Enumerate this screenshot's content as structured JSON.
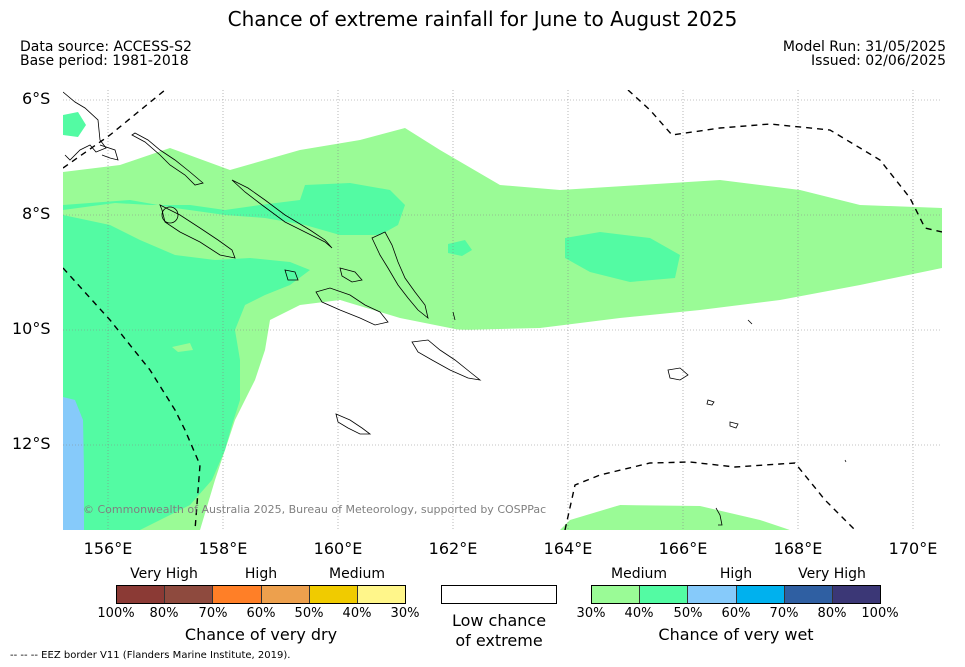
{
  "title": "Chance of extreme rainfall for June to August 2025",
  "data_source": "Data source: ACCESS-S2",
  "base_period": "Base period: 1981-2018",
  "model_run": "Model Run: 31/05/2025",
  "issued": "Issued: 02/06/2025",
  "copyright": "© Commonwealth of Australia 2025, Bureau of Meteorology, supported by COSPPac",
  "footer": "--  --  -- EEZ border V11 (Flanders Marine Institute, 2019).",
  "map": {
    "lat_labels": [
      "6°S",
      "8°S",
      "10°S",
      "12°S"
    ],
    "lon_labels": [
      "156°E",
      "158°E",
      "160°E",
      "162°E",
      "164°E",
      "166°E",
      "168°E",
      "170°E"
    ],
    "extent": {
      "lon_min": 155.2,
      "lon_max": 170.5,
      "lat_min": -13.5,
      "lat_max": -5.6
    }
  },
  "legend_dry": {
    "title": "Chance of very dry",
    "categories": [
      "Very High",
      "High",
      "Medium"
    ],
    "ticks": [
      "100%",
      "80%",
      "70%",
      "60%",
      "50%",
      "40%",
      "30%"
    ],
    "colors": [
      "#8b3a35",
      "#8e4a3e",
      "#ff7f27",
      "#eda04d",
      "#f0cb00",
      "#fff68a"
    ]
  },
  "legend_low": {
    "line1": "Low chance",
    "line2": "of extreme",
    "color": "#ffffff"
  },
  "legend_wet": {
    "title": "Chance of very wet",
    "categories": [
      "Medium",
      "High",
      "Very High"
    ],
    "ticks": [
      "30%",
      "40%",
      "50%",
      "60%",
      "70%",
      "80%",
      "100%"
    ],
    "colors": [
      "#9afb96",
      "#53fba3",
      "#86cafa",
      "#00b1ee",
      "#2f5fa2",
      "#3b3776"
    ]
  }
}
